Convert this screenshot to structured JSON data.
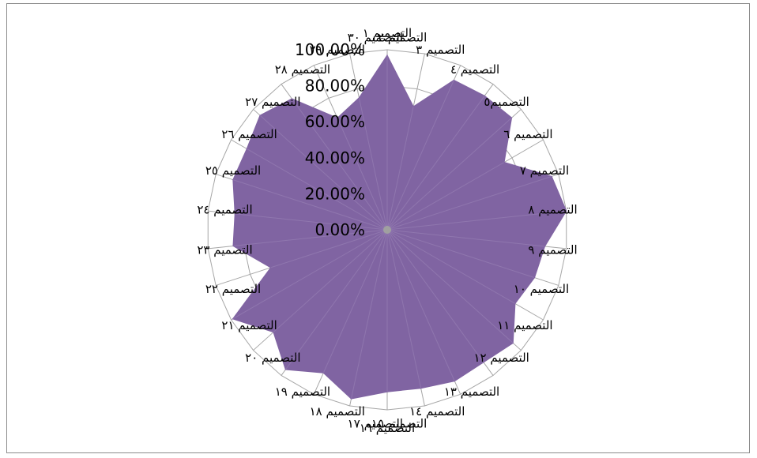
{
  "chart_data": {
    "type": "radar",
    "title": "",
    "categories": [
      "التصميم ١",
      "التصميم ٢",
      "التصميم ٣",
      "التصميم ٤",
      "التصميم٥",
      "التصميم ٦",
      "التصميم ٧",
      "التصميم ٨",
      "التصميم ٩",
      "التصميم ١٠",
      "التصميم ١١",
      "التصميم ١٢",
      "التصميم ١٣",
      "التصميم ١٤",
      "التصميم ١٥",
      "التصميم ١٦",
      "التصميم ١٧",
      "التصميم ١٨",
      "التصميم ١٩",
      "التصميم ٢٠",
      "التصميم ٢١",
      "التصميم ٢٢",
      "التصميم ٢٣",
      "التصميم ٢٤",
      "التصميم ٢٥",
      "التصميم ٢٦",
      "التصميم ٢٧",
      "التصميم ٢٨",
      "التصميم ٢٩",
      "التصميم ٣٠"
    ],
    "series": [
      {
        "values": [
          0.97,
          0.7,
          0.91,
          0.92,
          0.93,
          0.75,
          0.96,
          1.0,
          0.88,
          0.86,
          0.82,
          0.94,
          0.91,
          0.92,
          0.9,
          0.9,
          0.96,
          0.87,
          0.96,
          0.85,
          0.99,
          0.68,
          0.86,
          0.85,
          0.9,
          0.9,
          0.95,
          0.9,
          0.68,
          0.75
        ]
      }
    ],
    "tick_labels": [
      "0.00%",
      "20.00%",
      "40.00%",
      "60.00%",
      "80.00%",
      "100.00%"
    ],
    "ylim": [
      0,
      1
    ],
    "grid": true,
    "legend": "none",
    "colors": {
      "fill": "#8064a2",
      "grid": "#a6a6a6",
      "border": "#8c8c8c"
    }
  }
}
